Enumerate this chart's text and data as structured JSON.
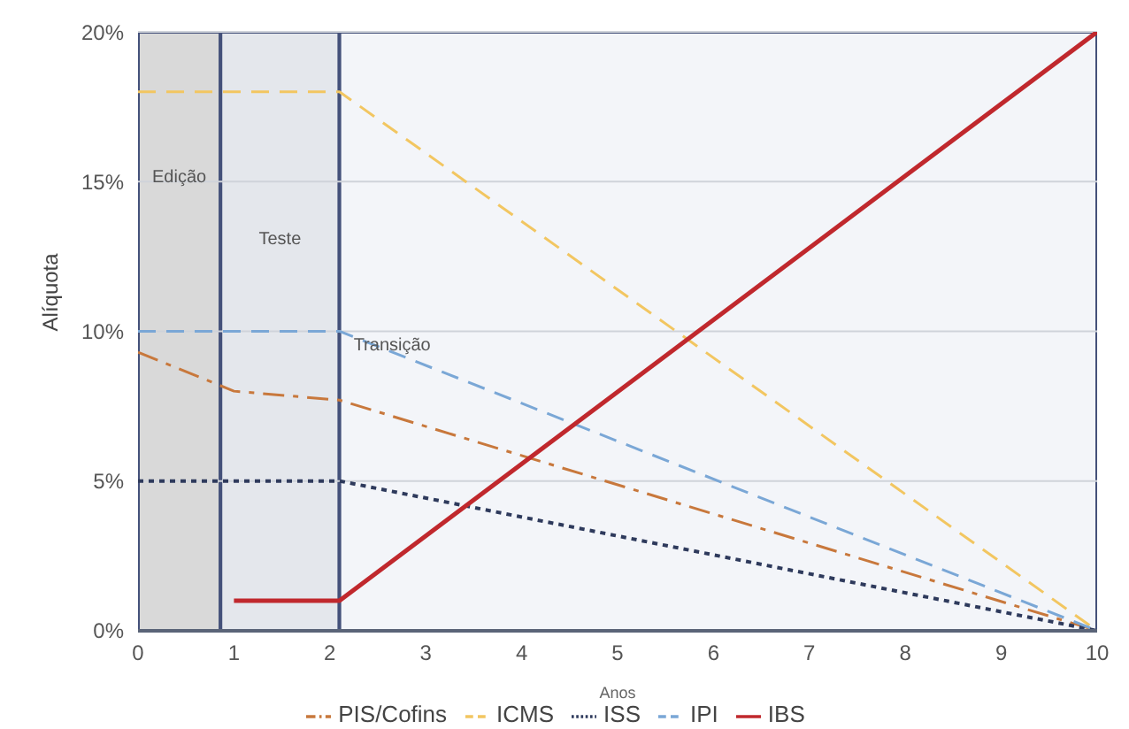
{
  "chart_data": {
    "type": "line",
    "xlabel": "Anos",
    "ylabel": "Alíquota",
    "xlim": [
      0,
      10
    ],
    "xticks": [
      0,
      1,
      2,
      3,
      4,
      5,
      6,
      7,
      8,
      9,
      10
    ],
    "ylim": [
      0,
      20
    ],
    "yticks": [
      {
        "value": 0,
        "label": "0%"
      },
      {
        "value": 5,
        "label": "5%"
      },
      {
        "value": 10,
        "label": "10%"
      },
      {
        "value": 15,
        "label": "15%"
      },
      {
        "value": 20,
        "label": "20%"
      }
    ],
    "grid": "y",
    "legend": "bottom",
    "bands": [
      {
        "axis": "x",
        "from": 0,
        "to": 0.86,
        "label": "Edição",
        "color": "#d9d9d9"
      },
      {
        "axis": "x",
        "from": 0.86,
        "to": 2.1,
        "label": "Teste",
        "color": "#e4e7ec"
      },
      {
        "axis": "x",
        "from": 2.1,
        "to": 10,
        "label": "Transição",
        "color": "#f3f5f9"
      }
    ],
    "series": [
      {
        "name": "PIS/Cofins",
        "color": "#c8783c",
        "line_style": "dashdot",
        "x": [
          0,
          1,
          2.1,
          10
        ],
        "values": [
          9.3,
          8.0,
          7.7,
          0
        ]
      },
      {
        "name": "ICMS",
        "color": "#f2c661",
        "line_style": "dashed",
        "x": [
          0,
          2.1,
          10
        ],
        "values": [
          18,
          18,
          0
        ]
      },
      {
        "name": "ISS",
        "color": "#2e3a5c",
        "line_style": "dotted",
        "x": [
          0,
          2.1,
          10
        ],
        "values": [
          5,
          5,
          0
        ]
      },
      {
        "name": "IPI",
        "color": "#7aa7d6",
        "line_style": "dashed",
        "x": [
          0,
          2.1,
          10
        ],
        "values": [
          10,
          10,
          0
        ]
      },
      {
        "name": "IBS",
        "color": "#c0282d",
        "line_style": "solid",
        "x": [
          1,
          2.1,
          10
        ],
        "values": [
          1,
          1,
          20
        ]
      }
    ]
  }
}
